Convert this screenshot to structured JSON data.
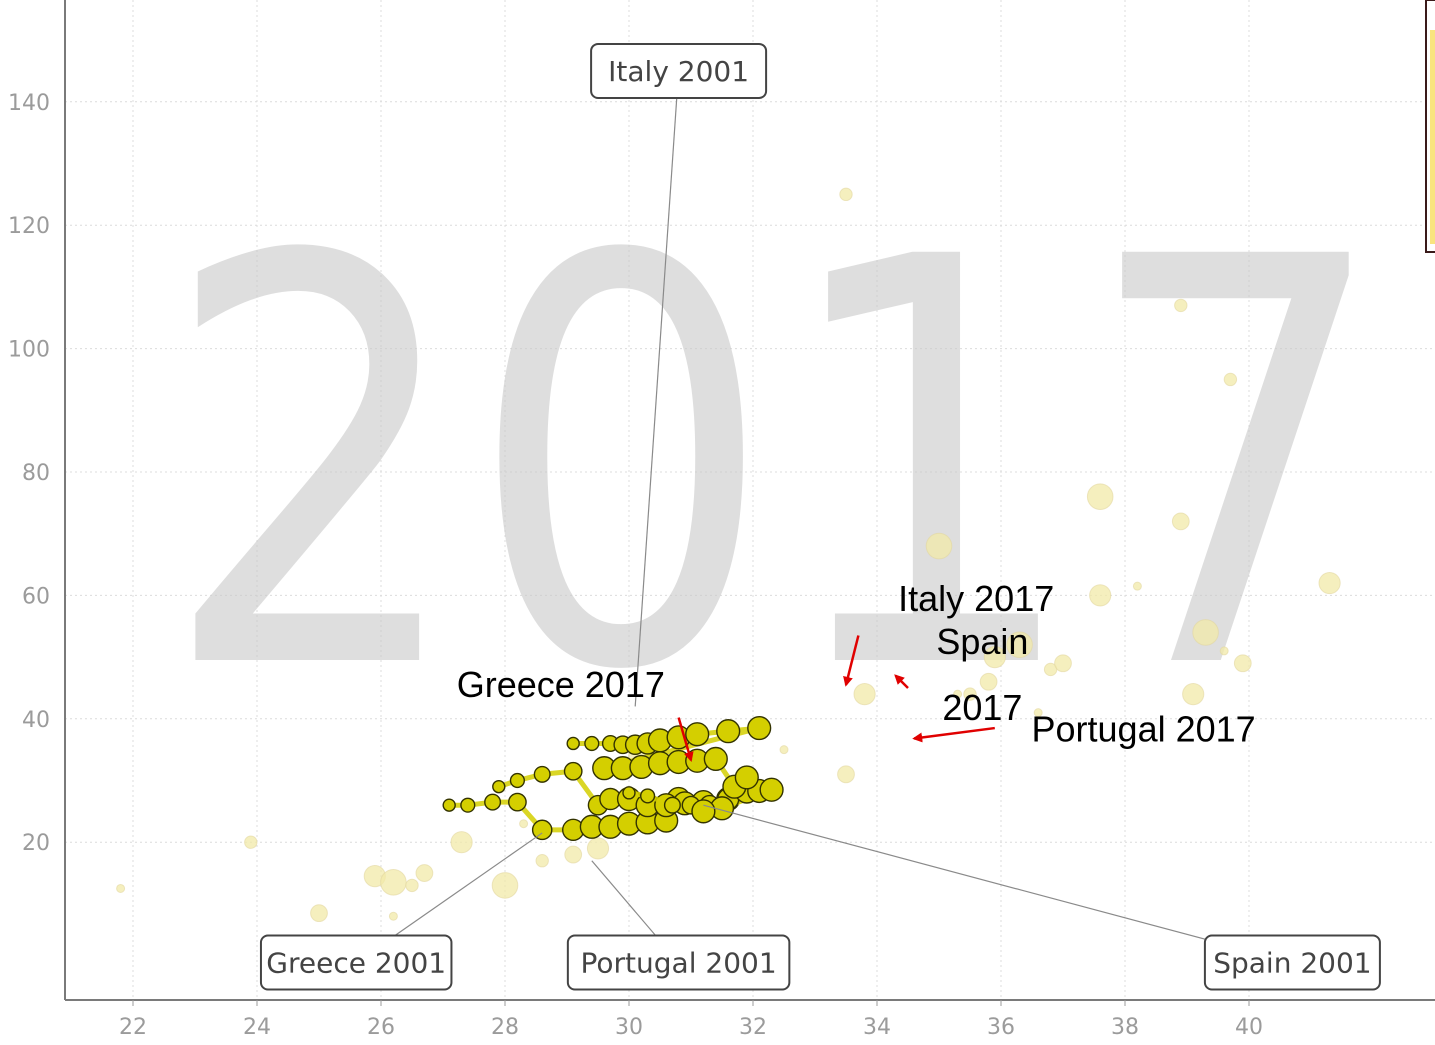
{
  "chart_data": {
    "type": "scatter",
    "year_watermark": "2017",
    "xlabel": "",
    "ylabel": "",
    "xlim": [
      21.3,
      41.3
    ],
    "ylim": [
      -3,
      154
    ],
    "x_ticks": [
      "22",
      "24",
      "26",
      "28",
      "30",
      "32",
      "34",
      "36",
      "38",
      "40"
    ],
    "y_ticks": [
      "20",
      "40",
      "60",
      "80",
      "100",
      "120",
      "140"
    ],
    "grid": true,
    "colors": {
      "highlight": "#d4cf00",
      "background_bubbles": "#f2e9a8",
      "arrow": "#e00000",
      "watermark": "#c9c9c9"
    },
    "box_labels": [
      {
        "text": "Italy 2001",
        "box_x": 30.8,
        "box_y": 145,
        "anchor_x": 30.1,
        "anchor_y": 42
      },
      {
        "text": "Greece 2001",
        "box_x": 25.6,
        "box_y": 0.5,
        "anchor_x": 28.6,
        "anchor_y": 21.5
      },
      {
        "text": "Portugal 2001",
        "box_x": 30.8,
        "box_y": 0.5,
        "anchor_x": 29.4,
        "anchor_y": 17
      },
      {
        "text": "Spain 2001",
        "box_x": 40.7,
        "box_y": 0.5,
        "anchor_x": 31.2,
        "anchor_y": 26
      }
    ],
    "annotations": [
      {
        "text": "Italy 2017",
        "x": 35.6,
        "y": 57.5,
        "arrow_from": [
          33.7,
          53.5
        ],
        "arrow_to": [
          33.5,
          45.5
        ]
      },
      {
        "text": "Spain",
        "x": 35.7,
        "y": 50.5,
        "arrow_from": [
          34.5,
          45
        ],
        "arrow_to": [
          34.3,
          47
        ]
      },
      {
        "text": "2017",
        "x": 35.7,
        "y": 39.8,
        "arrow_from": null,
        "arrow_to": null
      },
      {
        "text": "Portugal 2017",
        "x": 38.3,
        "y": 36.3,
        "arrow_from": [
          35.9,
          38.5
        ],
        "arrow_to": [
          34.6,
          36.8
        ]
      },
      {
        "text": "Greece 2017",
        "x": 28.9,
        "y": 43.5,
        "arrow_from": [
          30.8,
          40.2
        ],
        "arrow_to": [
          31.0,
          33.3
        ]
      }
    ],
    "series": [
      {
        "name": "Greece",
        "points": [
          [
            27.1,
            26
          ],
          [
            27.4,
            26
          ],
          [
            27.8,
            26.5
          ],
          [
            28.2,
            26.5
          ],
          [
            28.6,
            22
          ],
          [
            29.1,
            22
          ],
          [
            29.4,
            22.5
          ],
          [
            29.7,
            22.5
          ],
          [
            30.0,
            23
          ],
          [
            30.3,
            23.2
          ],
          [
            30.6,
            23.5
          ],
          [
            30.8,
            27
          ]
        ]
      },
      {
        "name": "Portugal",
        "points": [
          [
            27.9,
            29
          ],
          [
            28.2,
            30
          ],
          [
            28.6,
            31
          ],
          [
            29.1,
            31.5
          ],
          [
            29.5,
            26
          ],
          [
            29.7,
            27
          ],
          [
            30.0,
            27
          ],
          [
            30.3,
            26
          ],
          [
            30.6,
            26
          ],
          [
            30.9,
            26.3
          ],
          [
            31.2,
            26.5
          ],
          [
            31.6,
            27
          ]
        ]
      },
      {
        "name": "Spain",
        "points": [
          [
            30.0,
            28
          ],
          [
            30.3,
            27.5
          ],
          [
            30.7,
            26
          ],
          [
            31.0,
            26
          ],
          [
            31.3,
            26
          ],
          [
            31.6,
            27
          ],
          [
            31.9,
            28.2
          ],
          [
            32.1,
            28.3
          ],
          [
            32.3,
            28.5
          ],
          [
            31.5,
            25.5
          ],
          [
            31.2,
            25
          ]
        ]
      },
      {
        "name": "Italy",
        "points": [
          [
            29.1,
            36
          ],
          [
            29.4,
            36
          ],
          [
            29.7,
            36
          ],
          [
            29.9,
            35.8
          ],
          [
            30.1,
            35.8
          ],
          [
            30.3,
            36
          ],
          [
            30.5,
            36.5
          ],
          [
            30.8,
            37
          ],
          [
            31.1,
            37.5
          ],
          [
            31.6,
            38
          ],
          [
            32.1,
            38.5
          ],
          [
            29.6,
            32
          ],
          [
            29.9,
            32
          ],
          [
            30.2,
            32.2
          ],
          [
            30.5,
            32.8
          ],
          [
            30.8,
            33
          ],
          [
            31.1,
            33.2
          ],
          [
            31.4,
            33.5
          ],
          [
            31.7,
            29
          ],
          [
            31.9,
            30.5
          ]
        ]
      }
    ],
    "background_points": [
      [
        21.8,
        12.5
      ],
      [
        23.9,
        20
      ],
      [
        25.0,
        8.5
      ],
      [
        25.9,
        14.5
      ],
      [
        26.2,
        13.5
      ],
      [
        26.2,
        8
      ],
      [
        26.5,
        13
      ],
      [
        26.7,
        15
      ],
      [
        27.3,
        20
      ],
      [
        28.0,
        13
      ],
      [
        28.3,
        23
      ],
      [
        28.6,
        17
      ],
      [
        29.1,
        18
      ],
      [
        29.5,
        19
      ],
      [
        30.2,
        34
      ],
      [
        32.5,
        35
      ],
      [
        33.5,
        125
      ],
      [
        33.5,
        31
      ],
      [
        33.8,
        44
      ],
      [
        35.0,
        68
      ],
      [
        35.3,
        44
      ],
      [
        35.5,
        44
      ],
      [
        35.8,
        46
      ],
      [
        35.9,
        50
      ],
      [
        36.3,
        52
      ],
      [
        36.6,
        41
      ],
      [
        36.8,
        48
      ],
      [
        37.0,
        49
      ],
      [
        37.6,
        60
      ],
      [
        37.6,
        76
      ],
      [
        38.2,
        61.5
      ],
      [
        38.9,
        107
      ],
      [
        38.9,
        72
      ],
      [
        39.1,
        44
      ],
      [
        39.3,
        54
      ],
      [
        39.6,
        51
      ],
      [
        39.7,
        95
      ],
      [
        39.9,
        49
      ],
      [
        41.3,
        62
      ]
    ]
  }
}
